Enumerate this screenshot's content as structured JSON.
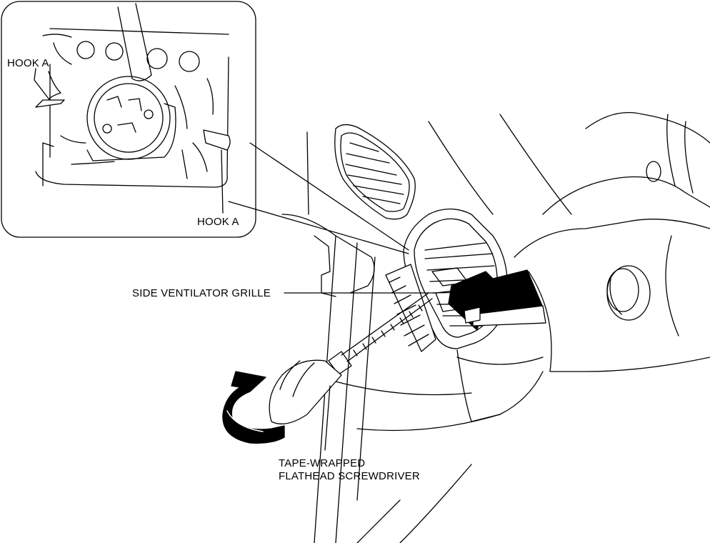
{
  "labels": {
    "hook_a_top": "HOOK A",
    "hook_a_bottom": "HOOK A",
    "side_ventilator_grille": "SIDE VENTILATOR GRILLE",
    "screwdriver_line1": "TAPE-WRAPPED",
    "screwdriver_line2": "FLATHEAD SCREWDRIVER"
  },
  "colors": {
    "line": "#000000",
    "background": "#ffffff"
  }
}
